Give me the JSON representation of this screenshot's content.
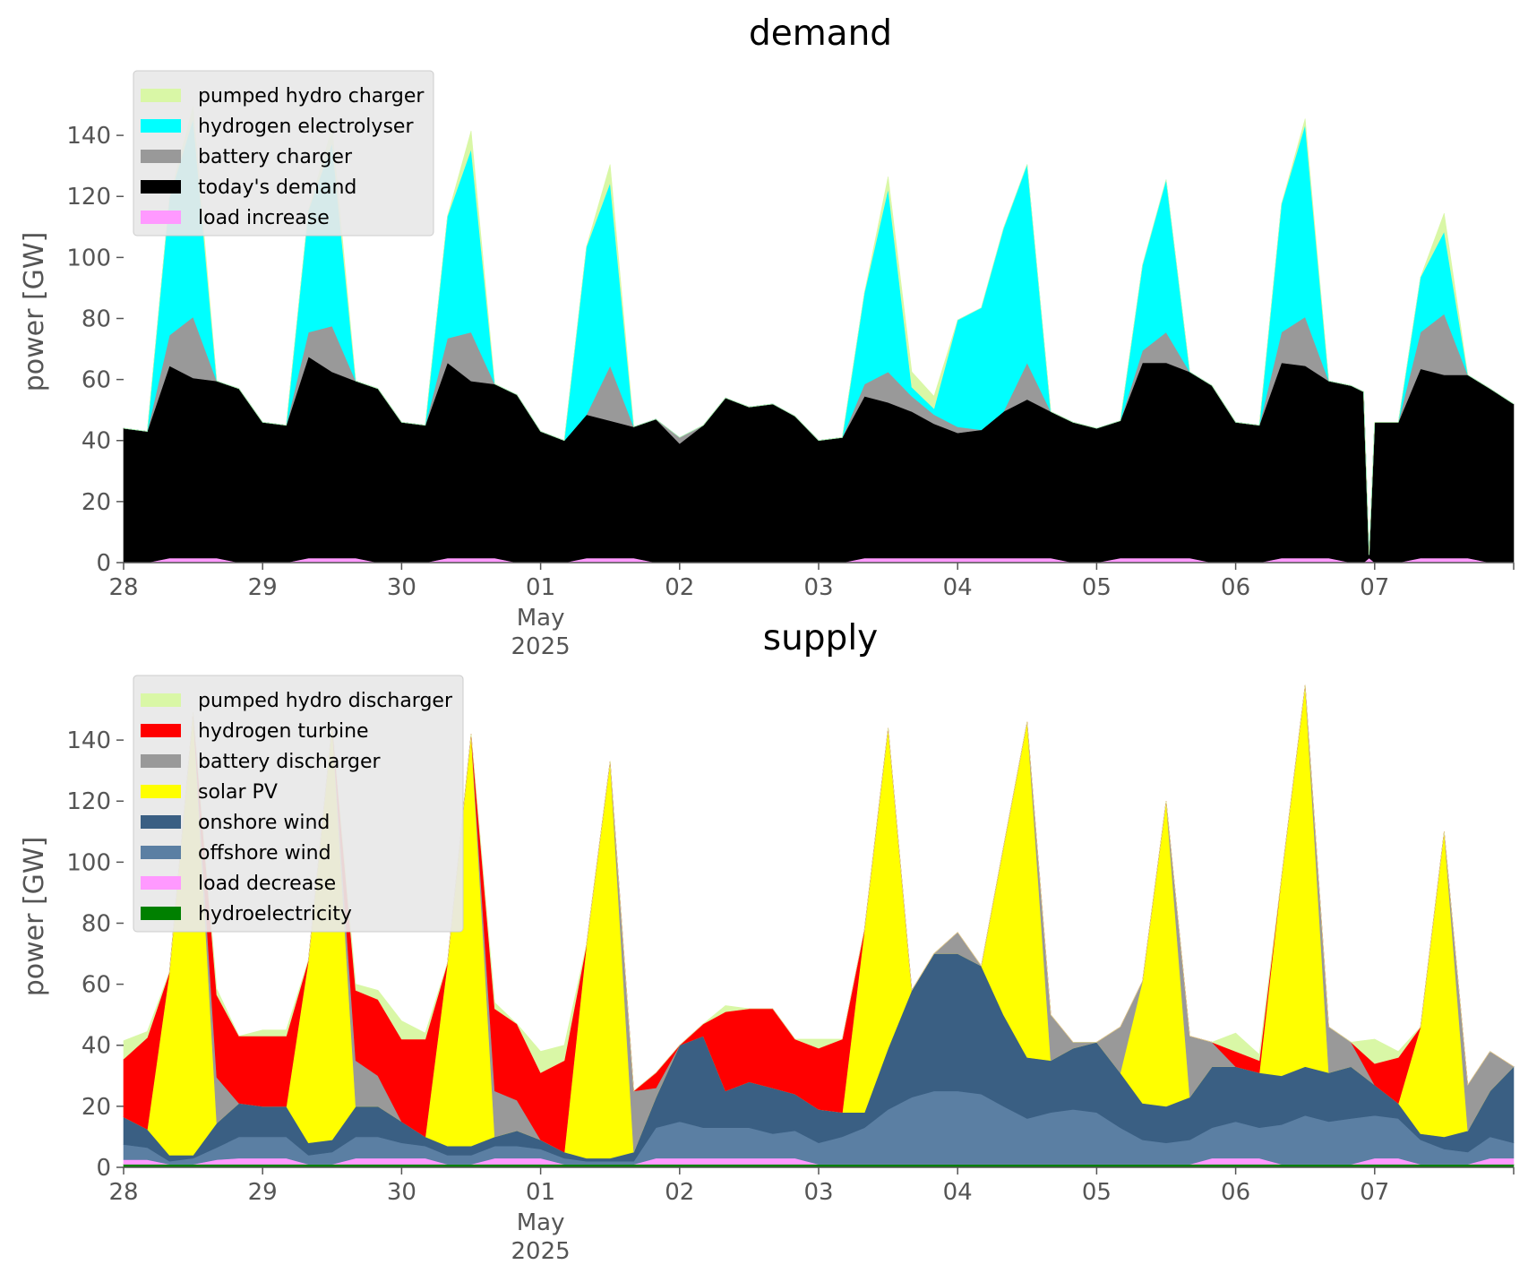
{
  "chart_data": [
    {
      "type": "area",
      "stacked": true,
      "title": "demand",
      "xlabel": "",
      "ylabel": "power [GW]",
      "ylim": [
        0,
        155
      ],
      "yticks": [
        0,
        20,
        40,
        60,
        80,
        100,
        120,
        140
      ],
      "xticks": [
        {
          "day": 0,
          "label": "28"
        },
        {
          "day": 1,
          "label": "29"
        },
        {
          "day": 2,
          "label": "30"
        },
        {
          "day": 3,
          "label": "01",
          "sub": [
            "May",
            "2025"
          ]
        },
        {
          "day": 4,
          "label": "02"
        },
        {
          "day": 5,
          "label": "03"
        },
        {
          "day": 6,
          "label": "04"
        },
        {
          "day": 7,
          "label": "05"
        },
        {
          "day": 8,
          "label": "06"
        },
        {
          "day": 9,
          "label": "07"
        }
      ],
      "x_range_days": [
        0,
        10
      ],
      "legend_location": "upper-left",
      "x_days": [
        0.0,
        0.17,
        0.33,
        0.5,
        0.67,
        0.83,
        1.0,
        1.17,
        1.33,
        1.5,
        1.67,
        1.83,
        2.0,
        2.17,
        2.33,
        2.5,
        2.67,
        2.83,
        3.0,
        3.17,
        3.33,
        3.5,
        3.67,
        3.83,
        4.0,
        4.17,
        4.33,
        4.5,
        4.67,
        4.83,
        5.0,
        5.17,
        5.33,
        5.5,
        5.67,
        5.83,
        6.0,
        6.17,
        6.33,
        6.5,
        6.67,
        6.83,
        7.0,
        7.17,
        7.33,
        7.5,
        7.67,
        7.83,
        8.0,
        8.17,
        8.33,
        8.5,
        8.67,
        8.83,
        8.92,
        8.96,
        9.0,
        9.17,
        9.33,
        9.5,
        9.67,
        9.83,
        10.0
      ],
      "series": [
        {
          "name": "load increase",
          "color": "#ff99ff",
          "values": [
            0,
            0,
            1.5,
            1.5,
            1.5,
            0,
            0,
            0,
            1.5,
            1.5,
            1.5,
            0,
            0,
            0,
            1.5,
            1.5,
            1.5,
            0,
            0,
            0,
            1.5,
            1.5,
            1.5,
            0,
            0,
            0,
            0,
            0,
            0,
            0,
            0,
            0,
            1.5,
            1.5,
            1.5,
            1.5,
            1.5,
            1.5,
            1.5,
            1.5,
            1.5,
            0,
            0,
            1.5,
            1.5,
            1.5,
            1.5,
            0,
            0,
            0,
            1.5,
            1.5,
            1.5,
            0,
            0,
            1.5,
            0,
            0,
            1.5,
            1.5,
            1.5,
            0,
            0
          ]
        },
        {
          "name": "today's demand",
          "color": "#000000",
          "values": [
            44,
            43,
            63,
            59,
            58,
            57,
            46,
            45,
            66,
            61,
            58,
            57,
            46,
            45,
            64,
            58,
            57,
            55,
            43,
            40,
            47,
            45,
            43,
            47,
            39,
            45,
            54,
            51,
            52,
            48,
            40,
            41,
            53,
            51,
            48,
            44,
            41,
            42,
            48,
            52,
            48,
            46,
            44,
            45,
            64,
            64,
            61,
            58,
            46,
            45,
            64,
            63,
            58,
            58,
            56,
            1,
            46,
            46,
            62,
            60,
            60,
            57,
            52
          ]
        },
        {
          "name": "battery charger",
          "color": "#999999",
          "values": [
            0,
            0,
            10,
            20,
            0,
            0,
            0,
            0,
            8,
            15,
            0,
            0,
            0,
            0,
            8,
            16,
            0,
            0,
            0,
            0,
            0,
            18,
            0,
            0,
            2,
            0,
            0,
            0,
            0,
            0,
            0,
            0,
            4,
            10,
            5,
            3,
            2,
            0,
            0,
            12,
            0,
            0,
            0,
            0,
            4,
            10,
            0,
            0,
            0,
            0,
            10,
            16,
            0,
            0,
            0,
            0,
            0,
            0,
            12,
            20,
            0,
            0,
            0
          ]
        },
        {
          "name": "hydrogen electrolyser",
          "color": "#00ffff",
          "values": [
            0,
            0,
            45,
            65,
            0,
            0,
            0,
            0,
            40,
            60,
            0,
            0,
            0,
            0,
            40,
            60,
            0,
            0,
            0,
            0,
            55,
            60,
            0,
            0,
            0,
            0,
            0,
            0,
            0,
            0,
            0,
            0,
            30,
            60,
            3,
            2,
            35,
            40,
            60,
            65,
            0,
            0,
            0,
            0,
            28,
            50,
            0,
            0,
            0,
            0,
            42,
            63,
            0,
            0,
            0,
            0,
            0,
            0,
            18,
            27,
            0,
            0,
            0
          ]
        },
        {
          "name": "pumped hydro charger",
          "color": "#d9f7a6",
          "values": [
            0,
            0,
            0,
            4,
            0,
            0,
            0,
            0,
            0,
            5,
            0,
            0,
            0,
            0,
            0,
            6,
            0,
            0,
            0,
            0,
            0,
            6,
            0,
            0,
            0,
            0,
            0,
            0,
            0,
            0,
            0,
            0,
            0,
            4,
            5,
            4,
            0,
            0,
            0,
            0,
            0,
            0,
            0,
            0,
            0,
            0,
            0,
            0,
            0,
            0,
            0,
            2,
            0,
            0,
            0,
            0,
            0,
            0,
            0,
            6,
            0,
            0,
            0
          ]
        }
      ],
      "legend": [
        "pumped hydro charger",
        "hydrogen electrolyser",
        "battery charger",
        "today's demand",
        "load increase"
      ]
    },
    {
      "type": "area",
      "stacked": true,
      "title": "supply",
      "xlabel": "",
      "ylabel": "power [GW]",
      "ylim": [
        0,
        155
      ],
      "yticks": [
        0,
        20,
        40,
        60,
        80,
        100,
        120,
        140
      ],
      "xticks": [
        {
          "day": 0,
          "label": "28"
        },
        {
          "day": 1,
          "label": "29"
        },
        {
          "day": 2,
          "label": "30"
        },
        {
          "day": 3,
          "label": "01",
          "sub": [
            "May",
            "2025"
          ]
        },
        {
          "day": 4,
          "label": "02"
        },
        {
          "day": 5,
          "label": "03"
        },
        {
          "day": 6,
          "label": "04"
        },
        {
          "day": 7,
          "label": "05"
        },
        {
          "day": 8,
          "label": "06"
        },
        {
          "day": 9,
          "label": "07"
        }
      ],
      "x_range_days": [
        0,
        10
      ],
      "legend_location": "upper-left",
      "x_days": [
        0.0,
        0.17,
        0.33,
        0.5,
        0.67,
        0.83,
        1.0,
        1.17,
        1.33,
        1.5,
        1.67,
        1.83,
        2.0,
        2.17,
        2.33,
        2.5,
        2.67,
        2.83,
        3.0,
        3.17,
        3.33,
        3.5,
        3.67,
        3.83,
        4.0,
        4.17,
        4.33,
        4.5,
        4.67,
        4.83,
        5.0,
        5.17,
        5.33,
        5.5,
        5.67,
        5.83,
        6.0,
        6.17,
        6.33,
        6.5,
        6.67,
        6.83,
        7.0,
        7.17,
        7.33,
        7.5,
        7.67,
        7.83,
        8.0,
        8.17,
        8.33,
        8.5,
        8.67,
        8.83,
        9.0,
        9.17,
        9.33,
        9.5,
        9.67,
        9.83,
        10.0
      ],
      "series": [
        {
          "name": "hydroelectricity",
          "color": "#008000",
          "values": [
            1,
            1,
            1,
            1,
            1,
            1,
            1,
            1,
            1,
            1,
            1,
            1,
            1,
            1,
            1,
            1,
            1,
            1,
            1,
            1,
            1,
            1,
            1,
            1,
            1,
            1,
            1,
            1,
            1,
            1,
            1,
            1,
            1,
            1,
            1,
            1,
            1,
            1,
            1,
            1,
            1,
            1,
            1,
            1,
            1,
            1,
            1,
            1,
            1,
            1,
            1,
            1,
            1,
            1,
            1,
            1,
            1,
            1,
            1,
            1,
            1
          ]
        },
        {
          "name": "load decrease",
          "color": "#ff99ff",
          "values": [
            1.5,
            1.5,
            0,
            0,
            1.5,
            2,
            2,
            2,
            0,
            0,
            2,
            2,
            2,
            2,
            0,
            0,
            2,
            2,
            2,
            0,
            0,
            0,
            0,
            2,
            2,
            2,
            2,
            2,
            2,
            2,
            0,
            0,
            0,
            0,
            0,
            0,
            0,
            0,
            0,
            0,
            0,
            0,
            0,
            0,
            0,
            0,
            0,
            2,
            2,
            2,
            0,
            0,
            0,
            0,
            2,
            2,
            0,
            0,
            0,
            2,
            2
          ]
        },
        {
          "name": "offshore wind",
          "color": "#5b7fa3",
          "values": [
            5,
            4,
            1,
            2,
            4,
            7,
            7,
            7,
            3,
            4,
            7,
            7,
            5,
            4,
            3,
            3,
            4,
            4,
            3,
            2,
            1,
            1,
            1,
            10,
            12,
            10,
            10,
            10,
            8,
            9,
            7,
            9,
            12,
            18,
            22,
            24,
            24,
            23,
            19,
            15,
            17,
            18,
            17,
            12,
            8,
            7,
            8,
            10,
            12,
            10,
            13,
            16,
            14,
            15,
            14,
            13,
            8,
            5,
            4,
            7,
            5
          ]
        },
        {
          "name": "onshore wind",
          "color": "#3a5f83",
          "values": [
            9,
            6,
            2,
            1,
            8,
            11,
            10,
            10,
            4,
            4,
            10,
            10,
            7,
            3,
            3,
            3,
            3,
            5,
            3,
            2,
            1,
            1,
            3,
            10,
            25,
            30,
            12,
            15,
            15,
            12,
            11,
            8,
            5,
            20,
            35,
            45,
            45,
            42,
            30,
            20,
            17,
            20,
            23,
            18,
            12,
            12,
            14,
            20,
            18,
            18,
            16,
            16,
            16,
            17,
            10,
            5,
            2,
            4,
            7,
            15,
            25
          ]
        },
        {
          "name": "solar PV",
          "color": "#ffff00",
          "values": [
            0,
            0,
            60,
            145,
            0,
            0,
            0,
            0,
            60,
            136,
            0,
            0,
            0,
            0,
            60,
            135,
            0,
            0,
            0,
            0,
            70,
            130,
            0,
            0,
            0,
            0,
            0,
            0,
            0,
            0,
            0,
            0,
            60,
            105,
            0,
            0,
            0,
            0,
            55,
            110,
            0,
            0,
            0,
            0,
            40,
            100,
            0,
            0,
            0,
            0,
            65,
            125,
            0,
            0,
            0,
            0,
            35,
            100,
            0,
            0,
            0
          ]
        },
        {
          "name": "battery discharger",
          "color": "#999999",
          "values": [
            0,
            0,
            0,
            0,
            15,
            0,
            0,
            0,
            0,
            0,
            15,
            10,
            0,
            0,
            0,
            0,
            15,
            10,
            0,
            0,
            0,
            0,
            20,
            3,
            0,
            0,
            0,
            0,
            0,
            0,
            0,
            0,
            0,
            0,
            0,
            0,
            7,
            0,
            0,
            0,
            15,
            2,
            0,
            15,
            0,
            0,
            20,
            8,
            0,
            0,
            0,
            0,
            15,
            8,
            0,
            0,
            0,
            0,
            15,
            13,
            0
          ]
        },
        {
          "name": "hydrogen turbine",
          "color": "#ff0000",
          "values": [
            19,
            30,
            0,
            0,
            27,
            22,
            23,
            23,
            0,
            0,
            23,
            25,
            27,
            32,
            0,
            0,
            27,
            25,
            22,
            30,
            0,
            0,
            0,
            5,
            0,
            4,
            26,
            24,
            26,
            18,
            20,
            24,
            0,
            0,
            0,
            0,
            0,
            0,
            0,
            0,
            0,
            0,
            0,
            0,
            0,
            0,
            0,
            0,
            5,
            4,
            0,
            0,
            0,
            0,
            7,
            15,
            0,
            0,
            0,
            0,
            0
          ]
        },
        {
          "name": "pumped hydro discharger",
          "color": "#d9f7a6",
          "values": [
            6,
            2,
            0,
            0,
            2,
            0,
            2,
            2,
            0,
            0,
            2,
            3,
            6,
            2,
            0,
            0,
            2,
            0,
            7,
            5,
            0,
            0,
            0,
            0,
            0,
            0,
            2,
            0,
            0,
            0,
            3,
            0,
            0,
            0,
            0,
            0,
            0,
            0,
            0,
            0,
            0,
            0,
            0,
            0,
            0,
            0,
            0,
            0,
            6,
            2,
            0,
            0,
            0,
            0,
            8,
            2,
            0,
            0,
            0,
            0,
            0
          ]
        }
      ],
      "legend": [
        "pumped hydro discharger",
        "hydrogen turbine",
        "battery discharger",
        "solar PV",
        "onshore wind",
        "offshore wind",
        "load decrease",
        "hydroelectricity"
      ]
    }
  ]
}
